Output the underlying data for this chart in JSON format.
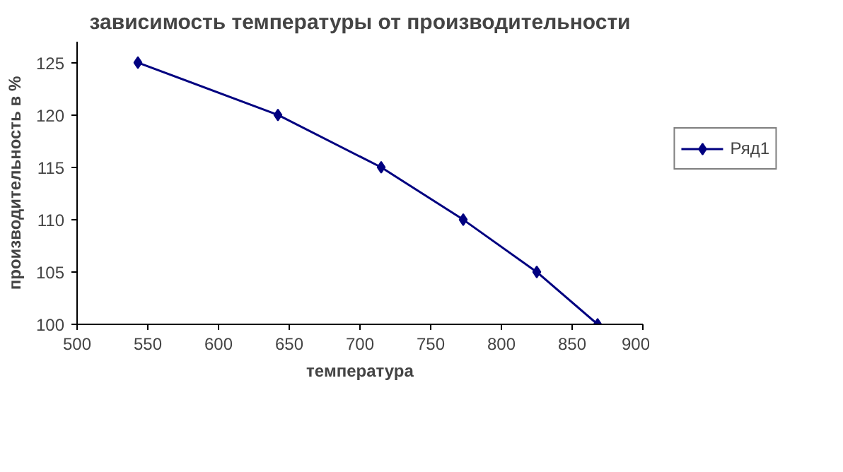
{
  "chart_data": {
    "type": "line",
    "title": "зависимость температуры от производительности",
    "xlabel": "температура",
    "ylabel": "производительность в %",
    "xlim": [
      500,
      900
    ],
    "xticks": [
      500,
      550,
      600,
      650,
      700,
      750,
      800,
      850,
      900
    ],
    "ylim": [
      100,
      127
    ],
    "yticks": [
      100,
      105,
      110,
      115,
      120,
      125
    ],
    "grid": false,
    "legend": "right",
    "marker": "diamond",
    "line_style": "solid",
    "series": [
      {
        "name": "Ряд1",
        "color": "#000080",
        "x": [
          543,
          642,
          715,
          773,
          825,
          868
        ],
        "values": [
          125,
          120,
          115,
          110,
          105,
          100
        ]
      }
    ]
  }
}
